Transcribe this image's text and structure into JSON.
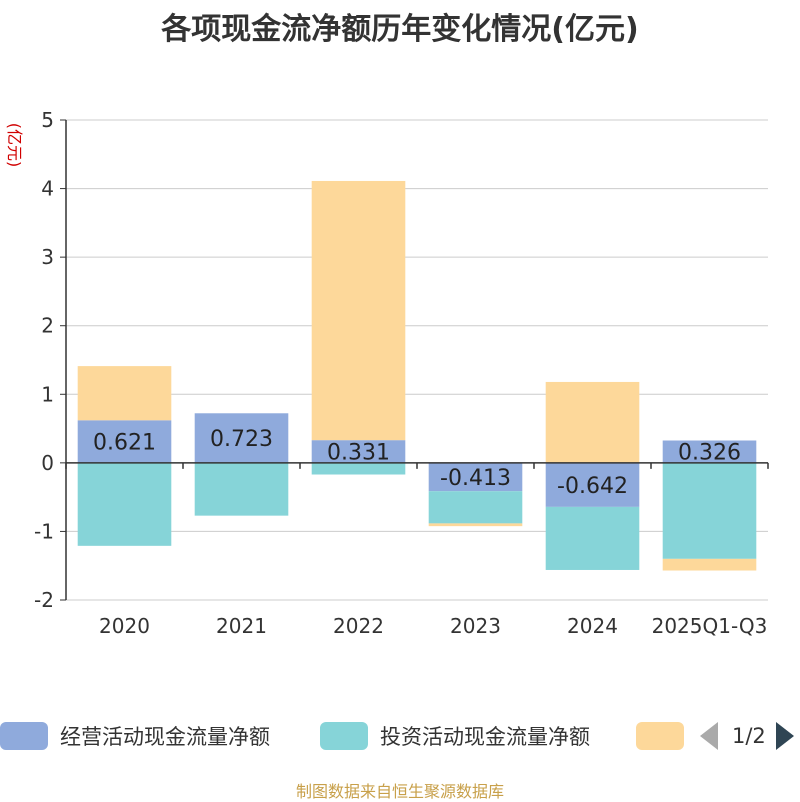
{
  "chart_data": {
    "type": "bar",
    "stacked": true,
    "title": "各项现金流净额历年变化情况(亿元)",
    "ylabel": "(亿元)",
    "xlabel": "",
    "ylim": [
      -2,
      5
    ],
    "yticks": [
      5,
      4,
      3,
      2,
      1,
      0,
      -1,
      -2
    ],
    "grid": true,
    "categories": [
      "2020",
      "2021",
      "2022",
      "2023",
      "2024",
      "2025Q1-Q3"
    ],
    "series": [
      {
        "name": "经营活动现金流量净额",
        "color": "#8faadc",
        "values": [
          0.621,
          0.723,
          0.331,
          -0.413,
          -0.642,
          0.326
        ],
        "labels": [
          "0.621",
          "0.723",
          "0.331",
          "-0.413",
          "-0.642",
          "0.326"
        ]
      },
      {
        "name": "投资活动现金流量净额",
        "color": "#86d4d8",
        "values": [
          -1.21,
          -0.77,
          -0.17,
          -0.47,
          -0.92,
          -1.4
        ]
      },
      {
        "name": "",
        "color": "#fdd89a",
        "values": [
          0.79,
          0.0,
          3.78,
          -0.04,
          1.18,
          -0.17
        ]
      }
    ],
    "legend_position": "bottom"
  },
  "legend": {
    "page": "1/2"
  },
  "source": "制图数据来自恒生聚源数据库"
}
